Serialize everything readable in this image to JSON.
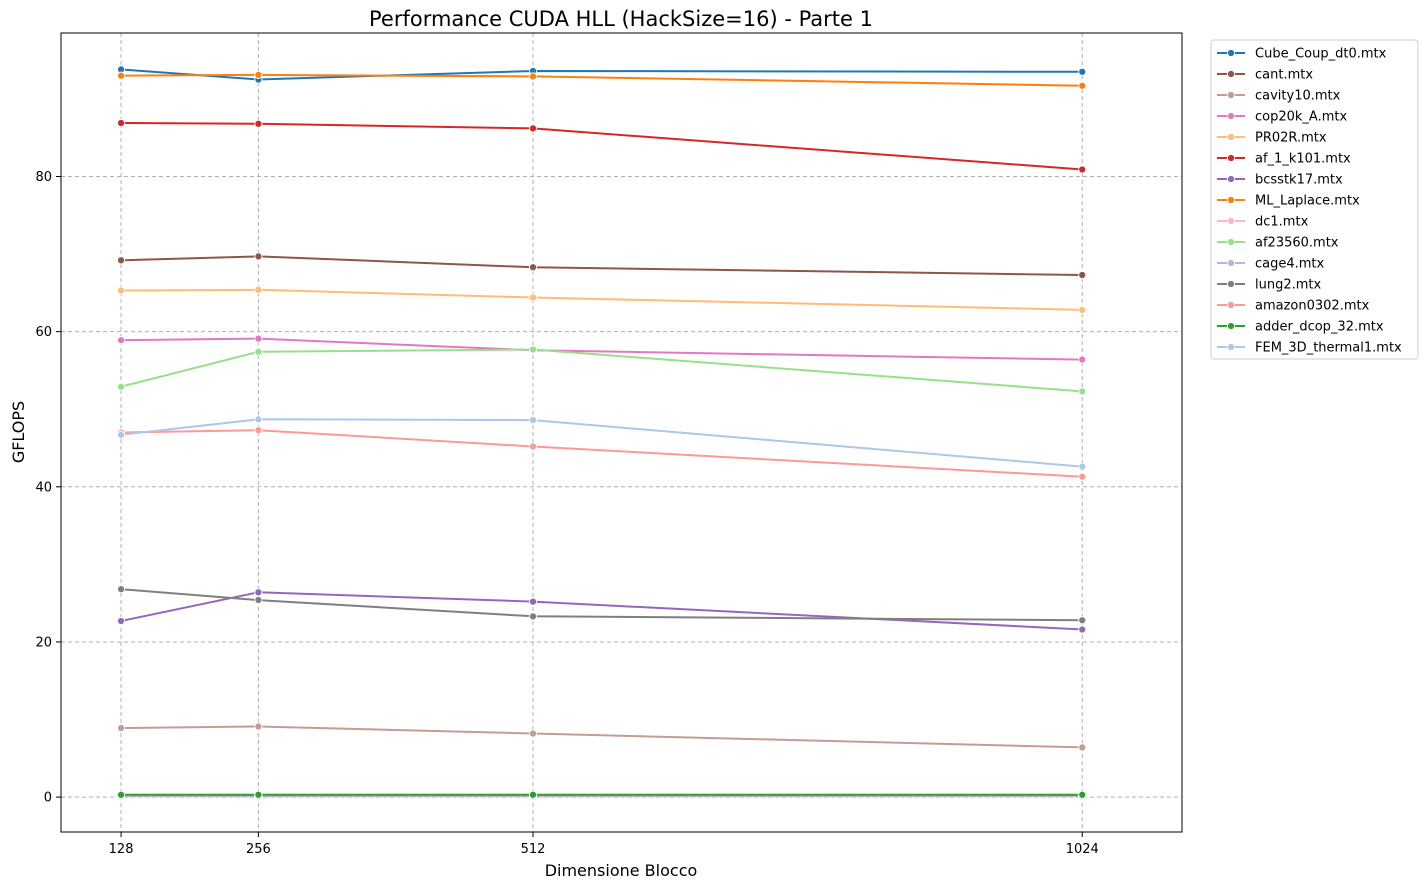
{
  "chart_data": {
    "type": "line",
    "title": "Performance CUDA HLL (HackSize=16) - Parte 1",
    "xlabel": "Dimensione Blocco",
    "ylabel": "GFLOPS",
    "x": [
      128,
      256,
      512,
      1024
    ],
    "x_tick_labels": [
      "128",
      "256",
      "512",
      "1024"
    ],
    "xlim": [
      72,
      1117
    ],
    "ylim": [
      -4.5,
      98.5
    ],
    "y_ticks": [
      0,
      20,
      40,
      60,
      80
    ],
    "y_tick_labels": [
      "0",
      "20",
      "40",
      "60",
      "80"
    ],
    "grid": true,
    "legend_position": "outside-right-top",
    "series": [
      {
        "name": "Cube_Coup_dt0.mtx",
        "color": "#1f77b4",
        "values": [
          93.8,
          92.5,
          93.6,
          93.5
        ]
      },
      {
        "name": "cant.mtx",
        "color": "#8c564b",
        "values": [
          69.2,
          69.7,
          68.3,
          67.3
        ]
      },
      {
        "name": "cavity10.mtx",
        "color": "#c49c94",
        "values": [
          8.9,
          9.1,
          8.2,
          6.4
        ]
      },
      {
        "name": "cop20k_A.mtx",
        "color": "#e377c2",
        "values": [
          58.9,
          59.1,
          57.6,
          56.4
        ]
      },
      {
        "name": "PR02R.mtx",
        "color": "#ffbb78",
        "values": [
          65.3,
          65.4,
          64.4,
          62.8
        ]
      },
      {
        "name": "af_1_k101.mtx",
        "color": "#d62728",
        "values": [
          86.9,
          86.8,
          86.2,
          80.9
        ]
      },
      {
        "name": "bcsstk17.mtx",
        "color": "#9467bd",
        "values": [
          22.7,
          26.4,
          25.2,
          21.6
        ]
      },
      {
        "name": "ML_Laplace.mtx",
        "color": "#ff7f0e",
        "values": [
          93.0,
          93.1,
          92.9,
          91.7
        ]
      },
      {
        "name": "dc1.mtx",
        "color": "#f7b6d2",
        "values": [
          0.2,
          0.2,
          0.2,
          0.2
        ]
      },
      {
        "name": "af23560.mtx",
        "color": "#98df8a",
        "values": [
          52.9,
          57.4,
          57.7,
          52.3
        ]
      },
      {
        "name": "cage4.mtx",
        "color": "#c5b0d5",
        "values": [
          0.1,
          0.1,
          0.1,
          0.1
        ]
      },
      {
        "name": "lung2.mtx",
        "color": "#7f7f7f",
        "values": [
          26.8,
          25.4,
          23.3,
          22.8
        ]
      },
      {
        "name": "amazon0302.mtx",
        "color": "#ff9896",
        "values": [
          47.0,
          47.3,
          45.2,
          41.3
        ]
      },
      {
        "name": "adder_dcop_32.mtx",
        "color": "#2ca02c",
        "values": [
          0.3,
          0.3,
          0.3,
          0.3
        ]
      },
      {
        "name": "FEM_3D_thermal1.mtx",
        "color": "#aec7e8",
        "values": [
          46.7,
          48.7,
          48.6,
          42.6
        ]
      }
    ]
  }
}
